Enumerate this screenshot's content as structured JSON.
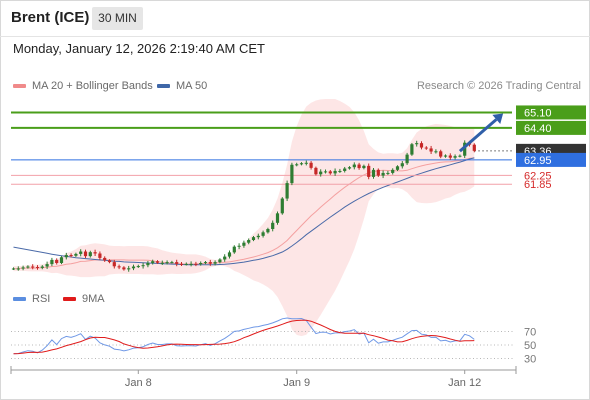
{
  "header": {
    "title": "Brent (ICE)",
    "timeframe": "30 MIN"
  },
  "datetime": "Monday, January 12, 2026 2:19:40 AM CET",
  "credit": "Research © 2026 Trading Central",
  "legend": {
    "main": [
      {
        "label": "MA 20 + Bollinger Bands",
        "color": "#f08a8a"
      },
      {
        "label": "MA 50",
        "color": "#3f67a8"
      }
    ],
    "rsi": [
      {
        "label": "RSI",
        "color": "#5b8ee0"
      },
      {
        "label": "9MA",
        "color": "#e02020"
      }
    ]
  },
  "colors": {
    "up": "#2e7d32",
    "down": "#c62828",
    "bb_fill": "#fde2e2",
    "ma20": "#f4a0a0",
    "ma50": "#4a6aa8",
    "resistance": "#4a9e1a",
    "pivot": "#2f6fe0",
    "support": "#f2a0a8",
    "support_text": "#d52a2a",
    "current": "#333333",
    "arrow": "#2f5fa8"
  },
  "chart_data": [
    {
      "type": "candlestick",
      "title": "",
      "x_ticks": [
        "Jan 8",
        "Jan 9",
        "Jan 12"
      ],
      "ylim": [
        57.6,
        65.8
      ],
      "levels": [
        {
          "value": 65.1,
          "label": "65.10",
          "kind": "resistance"
        },
        {
          "value": 64.4,
          "label": "64.40",
          "kind": "resistance"
        },
        {
          "value": 63.36,
          "label": "63.36",
          "kind": "current"
        },
        {
          "value": 62.95,
          "label": "62.95",
          "kind": "pivot"
        },
        {
          "value": 62.25,
          "label": "62.25",
          "kind": "support"
        },
        {
          "value": 61.85,
          "label": "61.85",
          "kind": "support"
        }
      ],
      "arrow": {
        "from_bar": 93,
        "from_value": 63.35,
        "to_bar": 102,
        "to_value": 65.05
      },
      "close": [
        58.03,
        58.03,
        58.08,
        58.12,
        58.1,
        58.06,
        58.12,
        58.23,
        58.42,
        58.28,
        58.54,
        58.64,
        58.61,
        58.69,
        58.8,
        58.59,
        58.77,
        58.71,
        58.51,
        58.4,
        58.32,
        58.13,
        58.08,
        57.99,
        58.04,
        58.12,
        58.14,
        58.18,
        58.28,
        58.36,
        58.29,
        58.29,
        58.32,
        58.32,
        58.24,
        58.23,
        58.24,
        58.24,
        58.23,
        58.28,
        58.32,
        58.25,
        58.32,
        58.44,
        58.57,
        58.76,
        59.02,
        59.06,
        59.2,
        59.32,
        59.45,
        59.51,
        59.67,
        59.82,
        60.1,
        60.53,
        61.2,
        61.9,
        62.73,
        62.75,
        62.8,
        62.82,
        62.59,
        62.3,
        62.42,
        62.43,
        62.34,
        62.45,
        62.45,
        62.56,
        62.62,
        62.74,
        62.58,
        62.68,
        62.18,
        62.5,
        62.24,
        62.36,
        62.36,
        62.5,
        62.66,
        62.8,
        63.19,
        63.66,
        63.71,
        63.51,
        63.47,
        63.33,
        63.34,
        63.1,
        63.15,
        63.05,
        63.12,
        63.14,
        63.73,
        63.64,
        63.36
      ],
      "ma20": [
        58.02,
        58.03,
        58.04,
        58.05,
        58.05,
        58.05,
        58.06,
        58.08,
        58.12,
        58.13,
        58.17,
        58.22,
        58.25,
        58.29,
        58.35,
        58.36,
        58.39,
        58.42,
        58.41,
        58.4,
        58.42,
        58.42,
        58.42,
        58.42,
        58.41,
        58.41,
        58.41,
        58.41,
        58.4,
        58.38,
        58.34,
        58.31,
        58.29,
        58.27,
        58.25,
        58.24,
        58.23,
        58.23,
        58.24,
        58.25,
        58.26,
        58.27,
        58.28,
        58.3,
        58.31,
        58.33,
        58.37,
        58.41,
        58.45,
        58.5,
        58.55,
        58.61,
        58.68,
        58.75,
        58.85,
        58.97,
        59.12,
        59.3,
        59.53,
        59.75,
        59.98,
        60.2,
        60.42,
        60.61,
        60.81,
        61.0,
        61.18,
        61.37,
        61.54,
        61.71,
        61.86,
        62.01,
        62.15,
        62.27,
        62.37,
        62.42,
        62.46,
        62.48,
        62.47,
        62.46,
        62.45,
        62.45,
        62.48,
        62.55,
        62.62,
        62.68,
        62.73,
        62.77,
        62.81,
        62.84,
        62.86,
        62.87,
        62.9,
        62.92,
        62.97,
        63.02,
        63.05
      ],
      "bb_upper": [
        58.14,
        58.14,
        58.15,
        58.19,
        58.2,
        58.2,
        58.22,
        58.29,
        58.42,
        58.43,
        58.57,
        58.72,
        58.8,
        58.91,
        59.06,
        59.08,
        59.14,
        59.17,
        59.15,
        59.12,
        59.07,
        59.05,
        59.05,
        59.04,
        59.05,
        59.05,
        59.05,
        59.05,
        59.03,
        58.98,
        58.94,
        58.86,
        58.8,
        58.75,
        58.72,
        58.7,
        58.67,
        58.67,
        58.67,
        58.63,
        58.57,
        58.46,
        58.42,
        58.44,
        58.49,
        58.6,
        58.81,
        58.98,
        59.18,
        59.38,
        59.61,
        59.81,
        60.05,
        60.32,
        60.7,
        61.2,
        61.9,
        62.73,
        63.78,
        64.48,
        65.0,
        65.37,
        65.54,
        65.64,
        65.69,
        65.71,
        65.71,
        65.71,
        65.62,
        65.5,
        65.35,
        65.11,
        64.74,
        64.26,
        63.66,
        63.45,
        63.29,
        63.23,
        63.25,
        63.25,
        63.23,
        63.27,
        63.48,
        63.86,
        64.19,
        64.35,
        64.47,
        64.53,
        64.58,
        64.56,
        64.53,
        64.49,
        64.43,
        64.38,
        64.43,
        64.43,
        64.35
      ],
      "bb_lower": [
        57.91,
        57.92,
        57.92,
        57.91,
        57.9,
        57.9,
        57.9,
        57.87,
        57.82,
        57.83,
        57.78,
        57.72,
        57.71,
        57.68,
        57.64,
        57.64,
        57.64,
        57.67,
        57.68,
        57.68,
        57.76,
        57.78,
        57.79,
        57.79,
        57.78,
        57.78,
        57.78,
        57.77,
        57.77,
        57.77,
        57.75,
        57.76,
        57.78,
        57.79,
        57.78,
        57.78,
        57.79,
        57.79,
        57.82,
        57.87,
        57.95,
        58.08,
        58.14,
        58.16,
        58.14,
        58.06,
        57.92,
        57.84,
        57.73,
        57.62,
        57.49,
        57.42,
        57.31,
        57.18,
        57.01,
        56.74,
        56.33,
        55.88,
        55.27,
        55.02,
        54.97,
        55.03,
        55.29,
        55.59,
        55.93,
        56.29,
        56.66,
        57.02,
        57.45,
        57.92,
        58.38,
        58.91,
        59.56,
        60.27,
        61.07,
        61.39,
        61.63,
        61.73,
        61.7,
        61.66,
        61.68,
        61.62,
        61.48,
        61.24,
        61.04,
        61.0,
        60.99,
        61.0,
        61.04,
        61.11,
        61.2,
        61.25,
        61.37,
        61.46,
        61.51,
        61.61,
        61.75
      ],
      "ma50": [
        59.0,
        58.96,
        58.92,
        58.88,
        58.84,
        58.8,
        58.76,
        58.72,
        58.68,
        58.64,
        58.61,
        58.58,
        58.55,
        58.52,
        58.5,
        58.48,
        58.46,
        58.44,
        58.42,
        58.4,
        58.38,
        58.36,
        58.35,
        58.33,
        58.32,
        58.31,
        58.3,
        58.29,
        58.28,
        58.27,
        58.26,
        58.25,
        58.24,
        58.23,
        58.22,
        58.21,
        58.2,
        58.2,
        58.2,
        58.2,
        58.2,
        58.2,
        58.2,
        58.21,
        58.22,
        58.24,
        58.26,
        58.29,
        58.32,
        58.36,
        58.4,
        58.44,
        58.49,
        58.55,
        58.61,
        58.69,
        58.78,
        58.9,
        59.05,
        59.21,
        59.38,
        59.56,
        59.72,
        59.88,
        60.04,
        60.2,
        60.36,
        60.51,
        60.66,
        60.81,
        60.95,
        61.08,
        61.2,
        61.32,
        61.43,
        61.53,
        61.62,
        61.71,
        61.79,
        61.87,
        61.95,
        62.03,
        62.11,
        62.2,
        62.28,
        62.35,
        62.42,
        62.49,
        62.55,
        62.61,
        62.67,
        62.73,
        62.79,
        62.85,
        62.92,
        62.99,
        63.04
      ]
    },
    {
      "type": "line",
      "title": "",
      "y_ticks": [
        70,
        50,
        30
      ],
      "ylim": [
        10,
        90
      ],
      "series": [
        {
          "name": "RSI",
          "values": [
            37.0,
            37.4,
            39.6,
            41.6,
            40.6,
            38.4,
            42.5,
            49.0,
            57.5,
            50.6,
            59.5,
            62.7,
            61.2,
            63.7,
            66.8,
            58.3,
            63.0,
            60.4,
            53.3,
            50.2,
            48.2,
            44.0,
            43.0,
            41.2,
            42.9,
            45.4,
            46.0,
            47.4,
            50.7,
            53.0,
            50.7,
            50.7,
            51.7,
            51.7,
            48.8,
            48.5,
            48.9,
            48.9,
            48.5,
            50.4,
            51.9,
            49.2,
            51.9,
            56.0,
            59.8,
            64.7,
            70.2,
            70.9,
            73.1,
            74.8,
            76.5,
            77.2,
            79.0,
            80.5,
            82.8,
            85.6,
            88.8,
            90.0,
            88.9,
            88.9,
            89.2,
            86.3,
            76.3,
            66.9,
            68.8,
            69.0,
            66.3,
            67.9,
            67.9,
            69.8,
            70.8,
            72.6,
            66.2,
            67.8,
            53.3,
            58.6,
            52.7,
            54.6,
            54.6,
            56.9,
            59.5,
            61.6,
            66.6,
            71.3,
            71.7,
            66.0,
            64.9,
            61.3,
            61.5,
            56.0,
            56.9,
            54.5,
            56.0,
            56.3,
            65.8,
            63.7,
            58.3
          ]
        },
        {
          "name": "9MA",
          "values": [
            37.0,
            37.2,
            38.0,
            38.9,
            39.2,
            39.1,
            39.5,
            40.9,
            42.7,
            44.2,
            46.6,
            49.1,
            50.9,
            52.9,
            55.1,
            57.8,
            60.4,
            61.6,
            61.1,
            61.1,
            59.5,
            57.5,
            55.2,
            51.6,
            49.5,
            47.5,
            46.1,
            45.1,
            45.6,
            46.4,
            47.4,
            48.7,
            50.2,
            51.1,
            51.3,
            51.1,
            50.8,
            50.6,
            50.6,
            50.5,
            50.6,
            50.9,
            51.1,
            51.4,
            52.0,
            53.1,
            54.9,
            57.6,
            60.8,
            63.4,
            66.3,
            69.1,
            71.7,
            73.8,
            75.9,
            78.1,
            80.6,
            83.3,
            85.4,
            86.3,
            86.6,
            86.6,
            85.3,
            82.5,
            79.6,
            76.3,
            73.0,
            70.2,
            68.4,
            67.3,
            67.3,
            67.4,
            67.5,
            67.4,
            65.3,
            63.8,
            61.8,
            59.8,
            57.2,
            56.2,
            54.6,
            54.9,
            56.8,
            59.3,
            61.4,
            62.8,
            63.5,
            64.1,
            63.6,
            62.4,
            60.9,
            58.9,
            57.1,
            55.6,
            56.2,
            56.4,
            56.5
          ]
        }
      ]
    }
  ]
}
